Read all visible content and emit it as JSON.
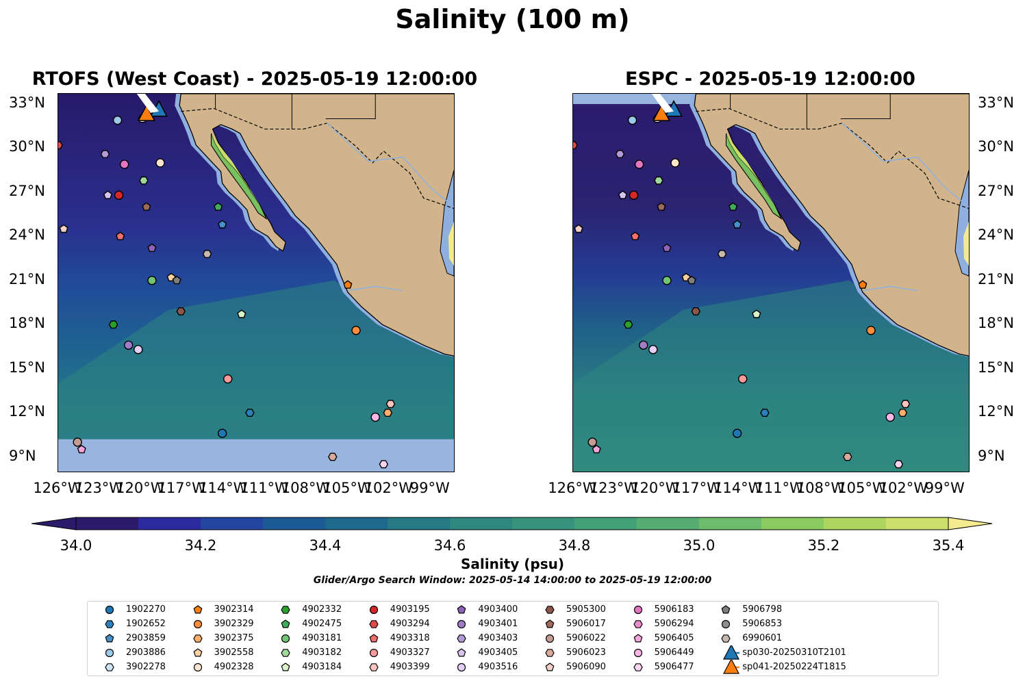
{
  "title": "Salinity (100 m)",
  "panels": [
    {
      "id": "left",
      "title": "RTOFS (West Coast) - 2025-05-19 12:00:00"
    },
    {
      "id": "right",
      "title": "ESPC - 2025-05-19 12:00:00"
    }
  ],
  "lat_ticks": [
    "33°N",
    "30°N",
    "27°N",
    "24°N",
    "21°N",
    "18°N",
    "15°N",
    "12°N",
    "9°N"
  ],
  "lon_ticks": [
    "126°W",
    "123°W",
    "120°W",
    "117°W",
    "114°W",
    "111°W",
    "108°W",
    "105°W",
    "102°W",
    "99°W"
  ],
  "colorbar": {
    "label": "Salinity (psu)",
    "min": 34.0,
    "max": 35.4,
    "ticks": [
      "34.0",
      "34.2",
      "34.4",
      "34.6",
      "34.8",
      "35.0",
      "35.2",
      "35.4"
    ],
    "colors": [
      "#2c1b6b",
      "#2c2a9e",
      "#23459e",
      "#1b5a94",
      "#1f6a8c",
      "#277a85",
      "#2f8780",
      "#37937b",
      "#43a077",
      "#55ad73",
      "#6cbc6b",
      "#8ccb62",
      "#aed55e",
      "#cde06e",
      "#f4ea8e"
    ]
  },
  "search_window": "Glider/Argo Search Window: 2025-05-14 14:00:00 to 2025-05-19 12:00:00",
  "legend": [
    {
      "label": "1902270",
      "marker": "circle",
      "color": "#1f77b4"
    },
    {
      "label": "1902652",
      "marker": "hexagon",
      "color": "#2c7fb8"
    },
    {
      "label": "2903859",
      "marker": "pentagon",
      "color": "#4a90c8"
    },
    {
      "label": "2903886",
      "marker": "circle",
      "color": "#9ecae9"
    },
    {
      "label": "3902278",
      "marker": "hexagon",
      "color": "#cfe4f4"
    },
    {
      "label": "3902314",
      "marker": "pentagon",
      "color": "#ff7f0e"
    },
    {
      "label": "3902329",
      "marker": "circle",
      "color": "#fd8d3c"
    },
    {
      "label": "3902375",
      "marker": "hexagon",
      "color": "#fdae6b"
    },
    {
      "label": "3902558",
      "marker": "pentagon",
      "color": "#fdd0a2"
    },
    {
      "label": "4902328",
      "marker": "circle",
      "color": "#fee6ce"
    },
    {
      "label": "4902332",
      "marker": "hexagon",
      "color": "#2ca02c"
    },
    {
      "label": "4902475",
      "marker": "pentagon",
      "color": "#41ab5d"
    },
    {
      "label": "4903181",
      "marker": "circle",
      "color": "#74c476"
    },
    {
      "label": "4903182",
      "marker": "hexagon",
      "color": "#a1d99b"
    },
    {
      "label": "4903184",
      "marker": "pentagon",
      "color": "#d9f4c9"
    },
    {
      "label": "4903195",
      "marker": "circle",
      "color": "#d62728"
    },
    {
      "label": "4903294",
      "marker": "hexagon",
      "color": "#e34a4a"
    },
    {
      "label": "4903318",
      "marker": "pentagon",
      "color": "#f07070"
    },
    {
      "label": "4903327",
      "marker": "circle",
      "color": "#fb9a99"
    },
    {
      "label": "4903399",
      "marker": "hexagon",
      "color": "#fcc5c0"
    },
    {
      "label": "4903400",
      "marker": "pentagon",
      "color": "#8e63b8"
    },
    {
      "label": "4903401",
      "marker": "circle",
      "color": "#9e7cc8"
    },
    {
      "label": "4903403",
      "marker": "hexagon",
      "color": "#b59ad8"
    },
    {
      "label": "4903405",
      "marker": "pentagon",
      "color": "#d8c4f0"
    },
    {
      "label": "4903516",
      "marker": "circle",
      "color": "#e4cff5"
    },
    {
      "label": "5905300",
      "marker": "hexagon",
      "color": "#8c564b"
    },
    {
      "label": "5906017",
      "marker": "pentagon",
      "color": "#9c6b5e"
    },
    {
      "label": "5906022",
      "marker": "circle",
      "color": "#c49c94"
    },
    {
      "label": "5906023",
      "marker": "hexagon",
      "color": "#d9a99e"
    },
    {
      "label": "5906090",
      "marker": "pentagon",
      "color": "#f2cfc7"
    },
    {
      "label": "5906183",
      "marker": "circle",
      "color": "#e377c2"
    },
    {
      "label": "5906294",
      "marker": "hexagon",
      "color": "#e98bcf"
    },
    {
      "label": "5906405",
      "marker": "pentagon",
      "color": "#f3a6dc"
    },
    {
      "label": "5906449",
      "marker": "circle",
      "color": "#f7b6e6"
    },
    {
      "label": "5906477",
      "marker": "hexagon",
      "color": "#fbd5f0"
    },
    {
      "label": "5906798",
      "marker": "pentagon",
      "color": "#7f7f7f"
    },
    {
      "label": "5906853",
      "marker": "circle",
      "color": "#8f8f8f"
    },
    {
      "label": "6990601",
      "marker": "hexagon",
      "color": "#c7b8b0"
    },
    {
      "label": "sp030-20250310T2101",
      "marker": "triangle",
      "color": "#1f77b4"
    },
    {
      "label": "sp041-20250224T1815",
      "marker": "triangle",
      "color": "#ff7f0e"
    }
  ],
  "floats": [
    {
      "lon": -119.9,
      "lat": 32.0,
      "legend": "3902278"
    },
    {
      "lon": -121.7,
      "lat": 31.9,
      "legend": "2903886"
    },
    {
      "lon": -126.0,
      "lat": 30.2,
      "legend": "4903294"
    },
    {
      "lon": -122.6,
      "lat": 29.6,
      "legend": "4903403"
    },
    {
      "lon": -121.2,
      "lat": 28.9,
      "legend": "5906183"
    },
    {
      "lon": -118.6,
      "lat": 29.0,
      "legend": "4902328"
    },
    {
      "lon": -119.8,
      "lat": 27.8,
      "legend": "4903182"
    },
    {
      "lon": -122.4,
      "lat": 26.8,
      "legend": "4903405"
    },
    {
      "lon": -121.6,
      "lat": 26.8,
      "legend": "4903195"
    },
    {
      "lon": -119.6,
      "lat": 26.0,
      "legend": "5906017"
    },
    {
      "lon": -114.4,
      "lat": 26.0,
      "legend": "4902475"
    },
    {
      "lon": -114.1,
      "lat": 24.8,
      "legend": "2903859"
    },
    {
      "lon": -125.6,
      "lat": 24.5,
      "legend": "5906090"
    },
    {
      "lon": -121.5,
      "lat": 24.0,
      "legend": "4903318"
    },
    {
      "lon": -119.2,
      "lat": 23.2,
      "legend": "4903400"
    },
    {
      "lon": -115.2,
      "lat": 22.8,
      "legend": "6990601"
    },
    {
      "lon": -117.8,
      "lat": 21.2,
      "legend": "3902558"
    },
    {
      "lon": -117.4,
      "lat": 21.0,
      "legend": "5906798"
    },
    {
      "lon": -119.2,
      "lat": 21.0,
      "legend": "4903181"
    },
    {
      "lon": -105.0,
      "lat": 20.7,
      "legend": "3902314"
    },
    {
      "lon": -117.1,
      "lat": 18.9,
      "legend": "5905300"
    },
    {
      "lon": -112.7,
      "lat": 18.7,
      "legend": "4903184"
    },
    {
      "lon": -122.0,
      "lat": 18.0,
      "legend": "4902332"
    },
    {
      "lon": -104.4,
      "lat": 17.6,
      "legend": "3902329"
    },
    {
      "lon": -120.9,
      "lat": 16.6,
      "legend": "4903401"
    },
    {
      "lon": -120.2,
      "lat": 16.3,
      "legend": "4903516"
    },
    {
      "lon": -113.7,
      "lat": 14.3,
      "legend": "4903327"
    },
    {
      "lon": -101.9,
      "lat": 12.6,
      "legend": "4903399"
    },
    {
      "lon": -102.1,
      "lat": 12.0,
      "legend": "3902375"
    },
    {
      "lon": -103.0,
      "lat": 11.7,
      "legend": "5906449"
    },
    {
      "lon": -112.1,
      "lat": 12.0,
      "legend": "1902652"
    },
    {
      "lon": -114.1,
      "lat": 10.6,
      "legend": "1902270"
    },
    {
      "lon": -124.6,
      "lat": 10.0,
      "legend": "5906022"
    },
    {
      "lon": -124.3,
      "lat": 9.5,
      "legend": "5906405"
    },
    {
      "lon": -106.1,
      "lat": 9.0,
      "legend": "5906023"
    },
    {
      "lon": -102.4,
      "lat": 8.5,
      "legend": "5906477"
    }
  ],
  "gliders": [
    {
      "lon": -118.7,
      "lat": 32.6,
      "legend": "sp030-20250310T2101"
    },
    {
      "lon": -119.6,
      "lat": 32.3,
      "legend": "sp041-20250224T1815"
    }
  ]
}
